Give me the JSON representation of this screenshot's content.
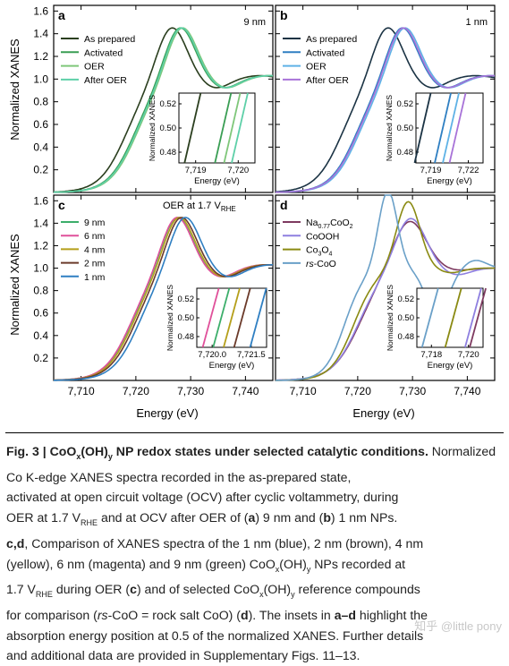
{
  "figure": {
    "ylabel": "Normalized XANES",
    "xlabel": "Energy (eV)",
    "yticks": [
      "0.2",
      "0.4",
      "0.6",
      "0.8",
      "1.0",
      "1.2",
      "1.4",
      "1.6"
    ],
    "xticks": [
      "7,710",
      "7,720",
      "7,730",
      "7,740"
    ],
    "panels": {
      "a": {
        "letter": "a",
        "tag": "9 nm",
        "inset_y": [
          "0.52",
          "0.50",
          "0.48"
        ],
        "inset_x": [
          "7,719",
          "7,720"
        ],
        "inset_xlabel": "Energy (eV)",
        "inset_ylabel": "Normalized XANES"
      },
      "b": {
        "letter": "b",
        "tag": "1 nm",
        "inset_y": [
          "0.52",
          "0.50",
          "0.48"
        ],
        "inset_x": [
          "7,719",
          "7,722"
        ],
        "inset_xlabel": "Energy (eV)",
        "inset_ylabel": "Normalized XANES"
      },
      "c": {
        "letter": "c",
        "tag": "OER at 1.7 V",
        "tag_sub": "RHE",
        "inset_y": [
          "0.52",
          "0.50",
          "0.48"
        ],
        "inset_x": [
          "7,720.0",
          "7,721.5"
        ],
        "inset_xlabel": "Energy (eV)",
        "inset_ylabel": "Normalized XANES"
      },
      "d": {
        "letter": "d",
        "inset_y": [
          "0.52",
          "0.50",
          "0.48"
        ],
        "inset_x": [
          "7,718",
          "7,720"
        ],
        "inset_xlabel": "Energy (eV)",
        "inset_ylabel": "Normalized XANES"
      }
    },
    "legend_a": [
      "As prepared",
      "Activated",
      "OER",
      "After OER"
    ],
    "legend_b": [
      "As prepared",
      "Activated",
      "OER",
      "After OER"
    ],
    "legend_c": [
      "9 nm",
      "6 nm",
      "4 nm",
      "2 nm",
      "1 nm"
    ],
    "legend_d": [
      {
        "main": "Na",
        "sub": "0.77",
        "rest": "CoO",
        "sub2": "2"
      },
      {
        "main": "CoOOH",
        "sub": "",
        "rest": "",
        "sub2": ""
      },
      {
        "main": "Co",
        "sub": "3",
        "rest": "O",
        "sub2": "4"
      },
      {
        "main": "rs",
        "sub": "",
        "rest": "-CoO",
        "sub2": ""
      }
    ]
  },
  "chart_data": [
    {
      "type": "line",
      "panel": "a",
      "xlabel": "Energy (eV)",
      "ylabel": "Normalized XANES",
      "xlim": [
        7705,
        7745
      ],
      "ylim": [
        0,
        1.65
      ],
      "series": [
        {
          "name": "As prepared",
          "color": "#2b3f1f",
          "shift": -1.5
        },
        {
          "name": "Activated",
          "color": "#3a9e54",
          "shift": 0
        },
        {
          "name": "OER",
          "color": "#7fc77a",
          "shift": 0.4
        },
        {
          "name": "After OER",
          "color": "#5ed0a8",
          "shift": 0.2
        }
      ]
    },
    {
      "type": "line",
      "panel": "b",
      "xlabel": "Energy (eV)",
      "ylabel": "Normalized XANES",
      "xlim": [
        7705,
        7745
      ],
      "ylim": [
        0,
        1.65
      ],
      "series": [
        {
          "name": "As prepared",
          "color": "#1b3344",
          "shift": -2.6
        },
        {
          "name": "Activated",
          "color": "#2f7fc2",
          "shift": 0
        },
        {
          "name": "OER",
          "color": "#5fb2e6",
          "shift": 0.5
        },
        {
          "name": "After OER",
          "color": "#a873d8",
          "shift": 0.2
        }
      ]
    },
    {
      "type": "line",
      "panel": "c",
      "xlabel": "Energy (eV)",
      "ylabel": "Normalized XANES",
      "xlim": [
        7705,
        7745
      ],
      "ylim": [
        0,
        1.65
      ],
      "series": [
        {
          "name": "9 nm",
          "color": "#3cae6a",
          "shift": -0.5
        },
        {
          "name": "6 nm",
          "color": "#e0509a",
          "shift": -0.6
        },
        {
          "name": "4 nm",
          "color": "#b59f1a",
          "shift": -0.2
        },
        {
          "name": "2 nm",
          "color": "#6b3a2a",
          "shift": 0.2
        },
        {
          "name": "1 nm",
          "color": "#2f7fc2",
          "shift": 0.9
        }
      ]
    },
    {
      "type": "line",
      "panel": "d",
      "xlabel": "Energy (eV)",
      "ylabel": "Normalized XANES",
      "xlim": [
        7705,
        7745
      ],
      "ylim": [
        0,
        1.65
      ],
      "series": [
        {
          "name": "Na0.77CoO2",
          "color": "#7e3a60"
        },
        {
          "name": "CoOOH",
          "color": "#8e7fe0"
        },
        {
          "name": "Co3O4",
          "color": "#8a8a12"
        },
        {
          "name": "rs-CoO",
          "color": "#6aa0c8"
        }
      ]
    }
  ],
  "caption": {
    "title": "Fig. 3 | CoO",
    "title_sub1": "x",
    "title_mid": "(OH)",
    "title_sub2": "y",
    "title_rest": " NP redox states under selected catalytic conditions.",
    "l1": " Normalized Co K-edge XANES spectra recorded in the as-prepared state,",
    "l2": "activated at open circuit voltage (OCV) after cyclic voltammetry, during",
    "l3a": "OER at 1.7 V",
    "l3sub": "RHE",
    "l3b": " and at OCV after OER of (",
    "l3c": "a",
    "l3d": ") 9 nm and (",
    "l3e": "b",
    "l3f": ") 1 nm NPs.",
    "l4a": "c",
    "l4b": ",",
    "l4c": "d",
    "l4d": ", Comparison of XANES spectra of the 1 nm (blue), 2 nm (brown), 4 nm",
    "l5a": "(yellow), 6 nm (magenta) and 9 nm (green) CoO",
    "l5sub1": "x",
    "l5b": "(OH)",
    "l5sub2": "y",
    "l5c": " NPs recorded at",
    "l6a": "1.7 V",
    "l6sub": "RHE",
    "l6b": " during OER (",
    "l6c": "c",
    "l6d": ") and of selected CoO",
    "l6sub1": "x",
    "l6e": "(OH)",
    "l6sub2": "y",
    "l6f": " reference compounds",
    "l7a": "for comparison (",
    "l7b": "rs",
    "l7c": "-CoO = rock salt CoO) (",
    "l7d": "d",
    "l7e": "). The insets in ",
    "l7f": "a",
    "l7g": "–",
    "l7h": "d",
    "l7i": " highlight the",
    "l8": "absorption energy position at 0.5 of the normalized XANES. Further details",
    "l9": "and additional data are provided in Supplementary Figs. 11–13."
  },
  "watermark": "知乎 @little pony"
}
